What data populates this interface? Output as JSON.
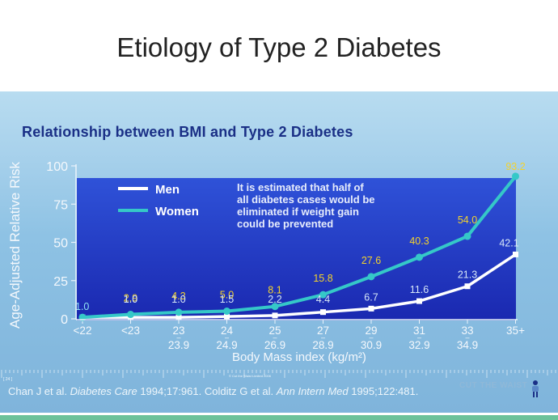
{
  "slide": {
    "title": "Etiology of Type 2 Diabetes"
  },
  "panel": {
    "heading": "Relationship between BMI and Type 2 Diabetes",
    "copyright": "© Cut the Waist Limited 2006",
    "citation_parts": [
      "Chan J et al. ",
      "Diabetes Care",
      " 1994;17:961. Colditz G et al. ",
      "Ann Intern Med",
      " 1995;122:481."
    ],
    "logo_text": "CUT THE WAIST",
    "corner_text": "[ 24 ]"
  },
  "colors": {
    "men": "#ffffff",
    "women": "#35c8c8",
    "plot_bg": "#2136c4",
    "women_label": "#f3d22c",
    "men_label": "#d7e7f7",
    "heading": "#1a2f86",
    "accent_line": "#6cc29a"
  },
  "chart_data": {
    "type": "line",
    "title": "Relationship between BMI and Type 2 Diabetes",
    "xlabel": "Body Mass index (kg/m²)",
    "ylabel": "Age-Adjusted Relative Risk",
    "ylim": [
      0,
      100
    ],
    "yticks": [
      0,
      25,
      50,
      75,
      100
    ],
    "categories": [
      "<22",
      "<23",
      "23",
      "24",
      "25",
      "27",
      "29",
      "31",
      "33",
      "35+"
    ],
    "category_sublabels": [
      "",
      "",
      "23.9",
      "24.9",
      "26.9",
      "28.9",
      "30.9",
      "32.9",
      "34.9",
      ""
    ],
    "series": [
      {
        "name": "Men",
        "values": [
          1.0,
          1.0,
          1.0,
          1.5,
          2.2,
          4.4,
          6.7,
          11.6,
          21.3,
          42.1
        ]
      },
      {
        "name": "Women",
        "values": [
          1.0,
          2.9,
          4.3,
          5.0,
          8.1,
          15.8,
          27.6,
          40.3,
          54.0,
          93.2
        ]
      }
    ],
    "legend": {
      "placement": "top-left",
      "entries": [
        "Men",
        "Women"
      ]
    },
    "annotation": [
      "It is estimated that half of",
      "all diabetes cases would be",
      "eliminated if weight gain",
      "could be prevented"
    ],
    "grid": false
  }
}
